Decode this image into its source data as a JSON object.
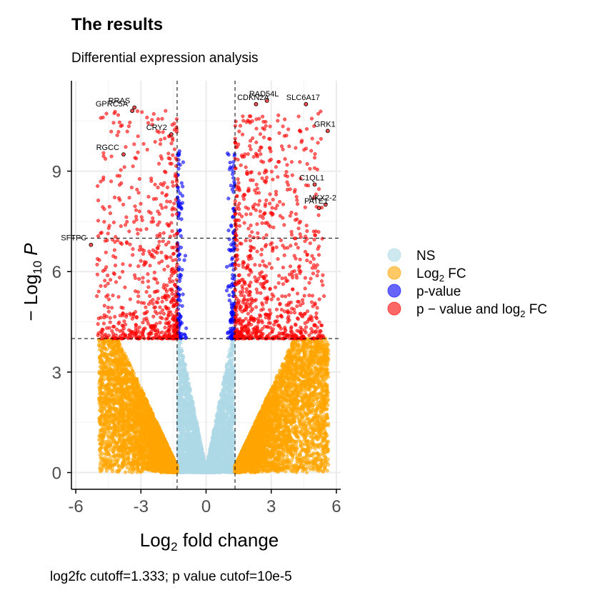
{
  "chart_data": {
    "type": "scatter",
    "title": "The results",
    "subtitle": "Differential expression analysis",
    "xlabel": "Log2 fold change",
    "ylabel": "−Log10 P",
    "caption": "log2fc cutoff=1.333; p value cutof=10e-5",
    "xlim": [
      -6.2,
      6.2
    ],
    "ylim": [
      -0.5,
      11.7
    ],
    "xticks": [
      -6,
      -3,
      0,
      3,
      6
    ],
    "yticks": [
      0,
      3,
      6,
      9
    ],
    "xtick_labels": [
      "-6",
      "-3",
      "0",
      "3",
      "6"
    ],
    "ytick_labels": [
      "0",
      "3",
      "6",
      "9"
    ],
    "cutoffs": {
      "fc": 1.333,
      "p": 4,
      "extra_hline": 7
    },
    "legend": {
      "position": "right",
      "entries": [
        {
          "label": "NS",
          "color": "#add8e6"
        },
        {
          "label": "Log2 FC",
          "color": "#ffa500"
        },
        {
          "label": "p-value",
          "color": "#0000ff"
        },
        {
          "label": "p − value and log2 FC",
          "color": "#ff0000"
        }
      ]
    },
    "highlighted": [
      {
        "label": "GPRC5A",
        "x": -3.4,
        "y": 10.8
      },
      {
        "label": "RRAS",
        "x": -3.3,
        "y": 10.9
      },
      {
        "label": "CRY2",
        "x": -1.6,
        "y": 10.1
      },
      {
        "label": "RGCC",
        "x": -3.8,
        "y": 9.5
      },
      {
        "label": "SFTPC",
        "x": -5.3,
        "y": 6.8
      },
      {
        "label": "CDKN2A",
        "x": 2.3,
        "y": 11.0
      },
      {
        "label": "RAD54L",
        "x": 2.8,
        "y": 11.1
      },
      {
        "label": "SLC6A17",
        "x": 4.6,
        "y": 11.0
      },
      {
        "label": "GRK1",
        "x": 5.6,
        "y": 10.2
      },
      {
        "label": "C1QL1",
        "x": 5.0,
        "y": 8.6
      },
      {
        "label": "NKX2-2",
        "x": 5.5,
        "y": 8.0
      },
      {
        "label": "PATE1",
        "x": 5.2,
        "y": 7.9
      }
    ],
    "colors": {
      "NS": "#add8e6",
      "FC": "#ffa500",
      "P": "#0000ff",
      "FC_P": "#ff0000"
    },
    "grid": true
  }
}
